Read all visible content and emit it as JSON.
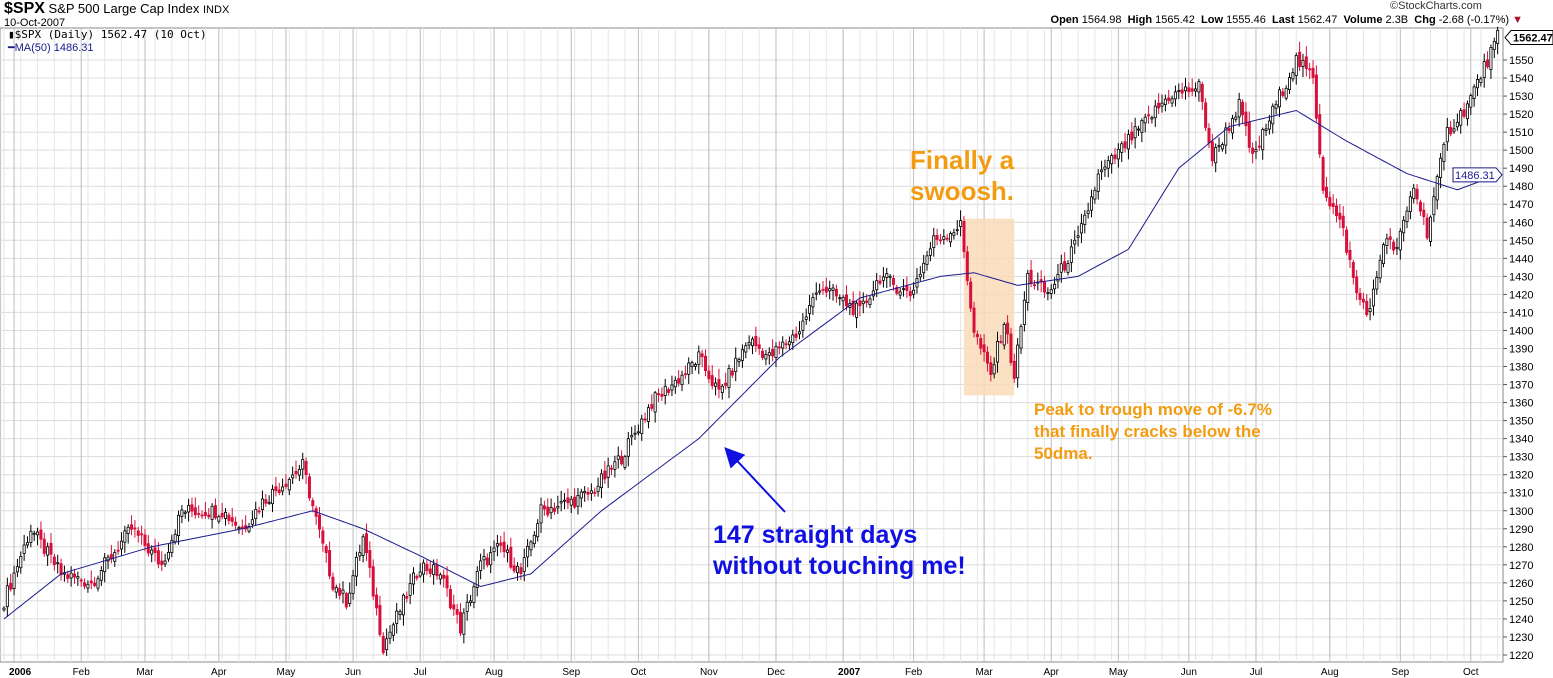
{
  "header": {
    "symbol": "$SPX",
    "name": "S&P 500 Large Cap Index",
    "exchange": "INDX",
    "date": "10-Oct-2007",
    "legend_price": "$SPX (Daily) 1562.47 (10 Oct)",
    "legend_ma": "MA(50) 1486.31",
    "watermark": "©StockCharts.com",
    "open_label": "Open",
    "open": "1564.98",
    "high_label": "High",
    "high": "1565.42",
    "low_label": "Low",
    "low": "1555.46",
    "last_label": "Last",
    "last": "1562.47",
    "volume_label": "Volume",
    "volume": "2.3B",
    "chg_label": "Chg",
    "chg": "-2.68 (-0.17%)"
  },
  "annotations": {
    "swoosh": "Finally a swoosh.",
    "peak": "Peak to trough move of -6.7% that finally cracks below the 50dma.",
    "days": "147 straight days without touching me!"
  },
  "colors": {
    "up": "#000000",
    "down": "#d6103b",
    "ma": "#1a1a8c",
    "orange": "#f39c12",
    "blue": "#1010e0",
    "highlight": "#f9dcb8"
  },
  "chart_data": {
    "type": "candlestick",
    "title": "$SPX S&P 500 Large Cap Index",
    "total_days": 446,
    "ylim": [
      1215,
      1565
    ],
    "yticks": [
      1220,
      1230,
      1240,
      1250,
      1260,
      1270,
      1280,
      1290,
      1300,
      1310,
      1320,
      1330,
      1340,
      1350,
      1360,
      1370,
      1380,
      1390,
      1400,
      1410,
      1420,
      1430,
      1440,
      1450,
      1460,
      1470,
      1480,
      1490,
      1500,
      1510,
      1520,
      1530,
      1540,
      1550
    ],
    "xticks": [
      {
        "label": "2006",
        "day": 3,
        "bold": true
      },
      {
        "label": "Feb",
        "day": 23
      },
      {
        "label": "Mar",
        "day": 42
      },
      {
        "label": "Apr",
        "day": 64
      },
      {
        "label": "May",
        "day": 84
      },
      {
        "label": "Jun",
        "day": 104
      },
      {
        "label": "Jul",
        "day": 124
      },
      {
        "label": "Aug",
        "day": 146
      },
      {
        "label": "Sep",
        "day": 169
      },
      {
        "label": "Oct",
        "day": 189
      },
      {
        "label": "Nov",
        "day": 210
      },
      {
        "label": "Dec",
        "day": 230
      },
      {
        "label": "2007",
        "day": 250,
        "bold": true
      },
      {
        "label": "Feb",
        "day": 271
      },
      {
        "label": "Mar",
        "day": 292
      },
      {
        "label": "Apr",
        "day": 312
      },
      {
        "label": "May",
        "day": 332
      },
      {
        "label": "Jun",
        "day": 353
      },
      {
        "label": "Jul",
        "day": 373
      },
      {
        "label": "Aug",
        "day": 395
      },
      {
        "label": "Sep",
        "day": 416
      },
      {
        "label": "Oct",
        "day": 437
      }
    ],
    "close_keypoints": [
      [
        0,
        1250
      ],
      [
        8,
        1290
      ],
      [
        17,
        1265
      ],
      [
        26,
        1260
      ],
      [
        38,
        1290
      ],
      [
        47,
        1270
      ],
      [
        53,
        1300
      ],
      [
        65,
        1300
      ],
      [
        71,
        1290
      ],
      [
        77,
        1305
      ],
      [
        89,
        1325
      ],
      [
        95,
        1280
      ],
      [
        98,
        1260
      ],
      [
        102,
        1250
      ],
      [
        107,
        1285
      ],
      [
        113,
        1225
      ],
      [
        118,
        1245
      ],
      [
        124,
        1270
      ],
      [
        130,
        1265
      ],
      [
        136,
        1235
      ],
      [
        142,
        1270
      ],
      [
        148,
        1280
      ],
      [
        154,
        1265
      ],
      [
        160,
        1300
      ],
      [
        169,
        1305
      ],
      [
        175,
        1310
      ],
      [
        184,
        1330
      ],
      [
        193,
        1360
      ],
      [
        202,
        1375
      ],
      [
        207,
        1385
      ],
      [
        213,
        1365
      ],
      [
        222,
        1395
      ],
      [
        228,
        1385
      ],
      [
        237,
        1400
      ],
      [
        243,
        1425
      ],
      [
        255,
        1410
      ],
      [
        261,
        1430
      ],
      [
        270,
        1420
      ],
      [
        277,
        1450
      ],
      [
        285,
        1458
      ],
      [
        289,
        1400
      ],
      [
        294,
        1375
      ],
      [
        298,
        1405
      ],
      [
        301,
        1375
      ],
      [
        305,
        1430
      ],
      [
        311,
        1420
      ],
      [
        320,
        1450
      ],
      [
        326,
        1485
      ],
      [
        335,
        1505
      ],
      [
        347,
        1530
      ],
      [
        356,
        1535
      ],
      [
        360,
        1495
      ],
      [
        368,
        1525
      ],
      [
        372,
        1495
      ],
      [
        380,
        1530
      ],
      [
        385,
        1550
      ],
      [
        390,
        1540
      ],
      [
        393,
        1480
      ],
      [
        399,
        1455
      ],
      [
        403,
        1420
      ],
      [
        407,
        1410
      ],
      [
        411,
        1450
      ],
      [
        415,
        1445
      ],
      [
        420,
        1480
      ],
      [
        424,
        1455
      ],
      [
        430,
        1510
      ],
      [
        436,
        1525
      ],
      [
        442,
        1550
      ],
      [
        445,
        1562.47
      ]
    ],
    "ma50_keypoints": [
      [
        0,
        1240
      ],
      [
        17,
        1265
      ],
      [
        44,
        1280
      ],
      [
        71,
        1290
      ],
      [
        92,
        1300
      ],
      [
        107,
        1290
      ],
      [
        124,
        1275
      ],
      [
        142,
        1258
      ],
      [
        157,
        1265
      ],
      [
        178,
        1300
      ],
      [
        207,
        1340
      ],
      [
        231,
        1385
      ],
      [
        255,
        1418
      ],
      [
        279,
        1430
      ],
      [
        289,
        1432
      ],
      [
        302,
        1425
      ],
      [
        320,
        1430
      ],
      [
        335,
        1445
      ],
      [
        350,
        1490
      ],
      [
        365,
        1513
      ],
      [
        385,
        1522
      ],
      [
        400,
        1505
      ],
      [
        418,
        1487
      ],
      [
        433,
        1478
      ],
      [
        445,
        1486.31
      ]
    ],
    "last_price": "1562.47",
    "last_ma": "1486.31",
    "highlight_range": {
      "day_start": 286,
      "day_end": 301,
      "low": 1364,
      "high": 1462
    }
  }
}
